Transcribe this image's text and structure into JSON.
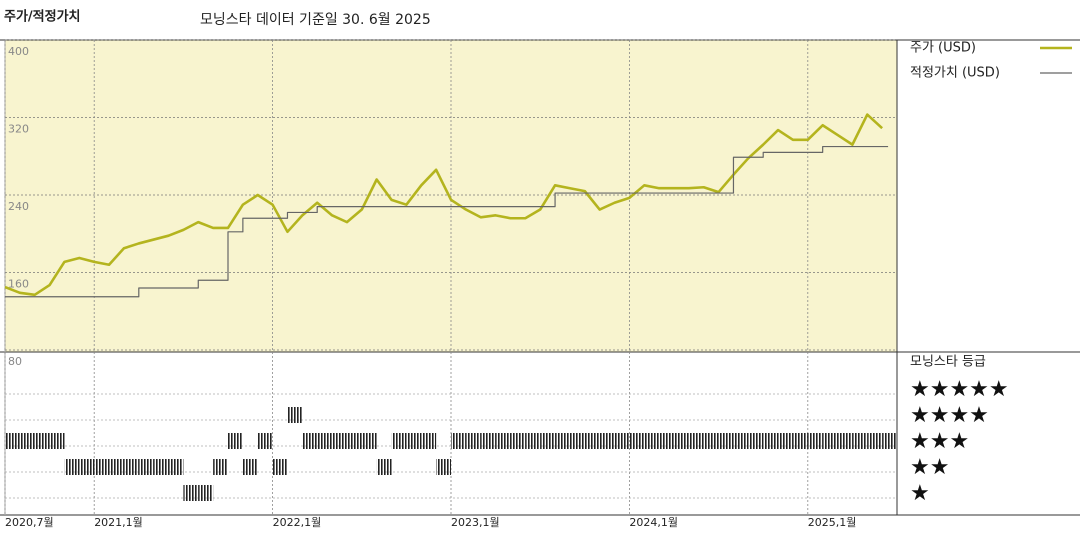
{
  "chart_data": {
    "type": "line",
    "title": "주가/적정가치",
    "subtitle": "모닝스타 데이터 기준일 30. 6월 2025",
    "x": [
      "2020-07",
      "2020-08",
      "2020-09",
      "2020-10",
      "2020-11",
      "2020-12",
      "2021-01",
      "2021-02",
      "2021-03",
      "2021-04",
      "2021-05",
      "2021-06",
      "2021-07",
      "2021-08",
      "2021-09",
      "2021-10",
      "2021-11",
      "2021-12",
      "2022-01",
      "2022-02",
      "2022-03",
      "2022-04",
      "2022-05",
      "2022-06",
      "2022-07",
      "2022-08",
      "2022-09",
      "2022-10",
      "2022-11",
      "2022-12",
      "2023-01",
      "2023-02",
      "2023-03",
      "2023-04",
      "2023-05",
      "2023-06",
      "2023-07",
      "2023-08",
      "2023-09",
      "2023-10",
      "2023-11",
      "2023-12",
      "2024-01",
      "2024-02",
      "2024-03",
      "2024-04",
      "2024-05",
      "2024-06",
      "2024-07",
      "2024-08",
      "2024-09",
      "2024-10",
      "2024-11",
      "2024-12",
      "2025-01",
      "2025-02",
      "2025-03",
      "2025-04",
      "2025-05",
      "2025-06"
    ],
    "xticks": [
      {
        "value": "2020-07",
        "label": "2020,7월"
      },
      {
        "value": "2021-01",
        "label": "2021,1월"
      },
      {
        "value": "2022-01",
        "label": "2022,1월"
      },
      {
        "value": "2023-01",
        "label": "2023,1월"
      },
      {
        "value": "2024-01",
        "label": "2024,1월"
      },
      {
        "value": "2025-01",
        "label": "2025,1월"
      }
    ],
    "ylim": [
      80,
      400
    ],
    "yticks": [
      80,
      160,
      240,
      320,
      400
    ],
    "grid": true,
    "series": [
      {
        "name": "주가 (USD)",
        "color": "#b4b41e",
        "values": [
          145,
          139,
          137,
          147,
          171,
          175,
          171,
          168,
          185,
          190,
          194,
          198,
          204,
          212,
          206,
          206,
          230,
          240,
          230,
          202,
          219,
          232,
          219,
          212,
          225,
          256,
          235,
          230,
          250,
          266,
          235,
          225,
          217,
          219,
          216,
          216,
          225,
          250,
          247,
          244,
          225,
          232,
          237,
          250,
          247,
          247,
          247,
          248,
          243,
          261,
          278,
          292,
          307,
          297,
          297,
          312,
          302,
          292,
          323,
          309
        ]
      },
      {
        "name": "적정가치 (USD)",
        "color": "#666666",
        "step": true,
        "values": [
          135,
          135,
          135,
          135,
          135,
          135,
          135,
          135,
          135,
          144,
          144,
          144,
          144,
          152,
          152,
          202,
          216,
          216,
          216,
          222,
          222,
          228,
          228,
          228,
          228,
          228,
          228,
          228,
          228,
          228,
          228,
          228,
          228,
          228,
          228,
          228,
          228,
          242,
          242,
          242,
          242,
          242,
          242,
          242,
          242,
          242,
          242,
          242,
          242,
          279,
          279,
          284,
          284,
          284,
          284,
          290,
          290,
          290,
          290,
          290
        ]
      }
    ],
    "rating": {
      "title": "모닝스타 등급",
      "color": "#222222",
      "ticks": [
        {
          "value": 5,
          "label": "★★★★★"
        },
        {
          "value": 4,
          "label": "★★★★"
        },
        {
          "value": 3,
          "label": "★★★"
        },
        {
          "value": 2,
          "label": "★★"
        },
        {
          "value": 1,
          "label": "★"
        }
      ],
      "values": [
        3,
        3,
        3,
        3,
        2,
        2,
        2,
        2,
        2,
        2,
        2,
        2,
        1,
        1,
        2,
        3,
        2,
        3,
        2,
        4,
        3,
        3,
        3,
        3,
        3,
        2,
        3,
        3,
        3,
        2,
        3,
        3,
        3,
        3,
        3,
        3,
        3,
        3,
        3,
        3,
        3,
        3,
        3,
        3,
        3,
        3,
        3,
        3,
        3,
        3,
        3,
        3,
        3,
        3,
        3,
        3,
        3,
        3,
        3,
        3
      ]
    }
  }
}
